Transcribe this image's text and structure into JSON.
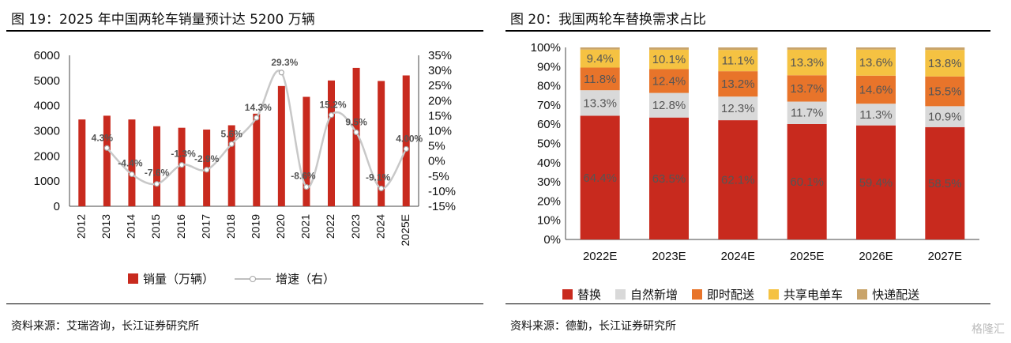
{
  "left": {
    "title": "图 19：2025 年中国两轮车销量预计达 5200 万辆",
    "source": "资料来源：艾瑞咨询，长江证券研究所",
    "legend": {
      "bar_label": "销量（万辆）",
      "line_label": "增速（右）"
    }
  },
  "right": {
    "title": "图 20：我国两轮车替换需求占比",
    "source": "资料来源：德勤，长江证券研究所"
  },
  "watermark": "格隆汇",
  "colors": {
    "red": "#c82a1e",
    "gray": "#bfbfbf",
    "light_gray": "#d9d9d9",
    "orange": "#e8742a",
    "yellow": "#f5c242",
    "tan": "#c9a46a"
  },
  "chart_data": [
    {
      "type": "bar",
      "title": "",
      "categories": [
        "2012",
        "2013",
        "2014",
        "2015",
        "2016",
        "2017",
        "2018",
        "2019",
        "2020",
        "2021",
        "2022",
        "2023",
        "2024",
        "2025E"
      ],
      "series": [
        {
          "name": "销量（万辆）",
          "axis": "left",
          "type": "bar",
          "values": [
            3450,
            3600,
            3450,
            3180,
            3120,
            3050,
            3220,
            3680,
            4780,
            4350,
            5000,
            5500,
            4980,
            5200
          ]
        },
        {
          "name": "增速（右）",
          "axis": "right",
          "type": "line",
          "values": [
            null,
            4.3,
            -4.4,
            -7.6,
            -1.3,
            -2.9,
            5.6,
            14.3,
            29.3,
            -8.6,
            15.2,
            9.5,
            -9.1,
            4.0
          ],
          "labels": [
            "",
            "4.3%",
            "-4.4%",
            "-7.6%",
            "-1.3%",
            "-2.9%",
            "5.6%",
            "14.3%",
            "29.3%",
            "-8.6%",
            "15.2%",
            "9.5%",
            "-9.1%",
            "4.00%"
          ]
        }
      ],
      "ylim": [
        0,
        6000
      ],
      "yticks": [
        0,
        1000,
        2000,
        3000,
        4000,
        5000,
        6000
      ],
      "y2lim": [
        -15,
        35
      ],
      "y2ticks": [
        "35%",
        "30%",
        "25%",
        "20%",
        "15%",
        "10%",
        "5%",
        "0%",
        "-5%",
        "-10%",
        "-15%"
      ],
      "legend": "bottom"
    },
    {
      "type": "bar",
      "stacked": "percent",
      "title": "",
      "categories": [
        "2022E",
        "2023E",
        "2024E",
        "2025E",
        "2026E",
        "2027E"
      ],
      "series": [
        {
          "name": "替换",
          "color": "#c82a1e",
          "values": [
            64.4,
            63.5,
            62.1,
            60.1,
            59.4,
            58.5
          ]
        },
        {
          "name": "自然新增",
          "color": "#d9d9d9",
          "values": [
            13.3,
            12.8,
            12.3,
            11.7,
            11.3,
            10.9
          ]
        },
        {
          "name": "即时配送",
          "color": "#e8742a",
          "values": [
            11.8,
            12.4,
            13.2,
            13.7,
            14.6,
            15.5
          ]
        },
        {
          "name": "共享电单车",
          "color": "#f5c242",
          "values": [
            9.4,
            10.1,
            11.1,
            13.3,
            13.6,
            13.8
          ]
        },
        {
          "name": "快递配送",
          "color": "#c9a46a",
          "values": [
            1.1,
            1.2,
            1.3,
            1.2,
            1.1,
            1.3
          ]
        }
      ],
      "yticks": [
        "0%",
        "10%",
        "20%",
        "30%",
        "40%",
        "50%",
        "60%",
        "70%",
        "80%",
        "90%",
        "100%"
      ],
      "legend": "bottom"
    }
  ]
}
